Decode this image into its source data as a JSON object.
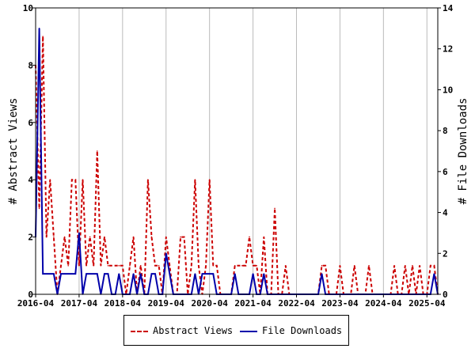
{
  "chart_data": {
    "type": "line",
    "x_tick_labels": [
      "2016-04",
      "2017-04",
      "2018-04",
      "2019-04",
      "2020-04",
      "2021-04",
      "2022-04",
      "2023-04",
      "2024-04",
      "2025-04"
    ],
    "x_range": [
      "2016-04",
      "2025-07"
    ],
    "ylabel_left": "# Abstract Views",
    "ylabel_right": "# File Downloads",
    "ylim_left": [
      0,
      10
    ],
    "ylim_right": [
      0,
      14
    ],
    "yticks_left": [
      "0",
      "2",
      "4",
      "6",
      "8",
      "10"
    ],
    "yticks_right": [
      "0",
      "2",
      "4",
      "6",
      "8",
      "10",
      "12",
      "14"
    ],
    "legend_position": "bottom",
    "series": [
      {
        "name": "Abstract Views",
        "axis": "left",
        "color": "#cc0000",
        "style": "dashed",
        "points": [
          [
            "2016-04",
            8
          ],
          [
            "2016-05",
            3
          ],
          [
            "2016-06",
            9
          ],
          [
            "2016-07",
            2
          ],
          [
            "2016-08",
            4
          ],
          [
            "2016-09",
            2
          ],
          [
            "2016-10",
            0
          ],
          [
            "2016-11",
            1
          ],
          [
            "2016-12",
            2
          ],
          [
            "2017-01",
            1
          ],
          [
            "2017-02",
            4
          ],
          [
            "2017-03",
            4
          ],
          [
            "2017-04",
            1
          ],
          [
            "2017-05",
            4
          ],
          [
            "2017-06",
            1
          ],
          [
            "2017-07",
            2
          ],
          [
            "2017-08",
            1
          ],
          [
            "2017-09",
            5
          ],
          [
            "2017-10",
            1
          ],
          [
            "2017-11",
            2
          ],
          [
            "2017-12",
            1
          ],
          [
            "2018-01",
            1
          ],
          [
            "2018-02",
            1
          ],
          [
            "2018-03",
            1
          ],
          [
            "2018-04",
            1
          ],
          [
            "2018-05",
            0
          ],
          [
            "2018-06",
            1
          ],
          [
            "2018-07",
            2
          ],
          [
            "2018-08",
            0
          ],
          [
            "2018-09",
            1
          ],
          [
            "2018-10",
            0
          ],
          [
            "2018-11",
            4
          ],
          [
            "2018-12",
            2
          ],
          [
            "2019-01",
            1
          ],
          [
            "2019-02",
            1
          ],
          [
            "2019-03",
            0
          ],
          [
            "2019-04",
            2
          ],
          [
            "2019-05",
            1
          ],
          [
            "2019-06",
            0
          ],
          [
            "2019-07",
            0
          ],
          [
            "2019-08",
            2
          ],
          [
            "2019-09",
            2
          ],
          [
            "2019-10",
            0
          ],
          [
            "2019-11",
            1
          ],
          [
            "2019-12",
            4
          ],
          [
            "2020-01",
            1
          ],
          [
            "2020-02",
            0
          ],
          [
            "2020-03",
            1
          ],
          [
            "2020-04",
            4
          ],
          [
            "2020-05",
            1
          ],
          [
            "2020-06",
            1
          ],
          [
            "2020-07",
            0
          ],
          [
            "2020-08",
            0
          ],
          [
            "2020-09",
            0
          ],
          [
            "2020-10",
            0
          ],
          [
            "2020-11",
            1
          ],
          [
            "2020-12",
            1
          ],
          [
            "2021-01",
            1
          ],
          [
            "2021-02",
            1
          ],
          [
            "2021-03",
            2
          ],
          [
            "2021-04",
            1
          ],
          [
            "2021-05",
            1
          ],
          [
            "2021-06",
            0
          ],
          [
            "2021-07",
            2
          ],
          [
            "2021-08",
            0
          ],
          [
            "2021-09",
            0
          ],
          [
            "2021-10",
            3
          ],
          [
            "2021-11",
            0
          ],
          [
            "2021-12",
            0
          ],
          [
            "2022-01",
            1
          ],
          [
            "2022-02",
            0
          ],
          [
            "2022-03",
            0
          ],
          [
            "2022-04",
            0
          ],
          [
            "2022-05",
            0
          ],
          [
            "2022-06",
            0
          ],
          [
            "2022-07",
            0
          ],
          [
            "2022-08",
            0
          ],
          [
            "2022-09",
            0
          ],
          [
            "2022-10",
            0
          ],
          [
            "2022-11",
            1
          ],
          [
            "2022-12",
            1
          ],
          [
            "2023-01",
            0
          ],
          [
            "2023-02",
            0
          ],
          [
            "2023-03",
            0
          ],
          [
            "2023-04",
            1
          ],
          [
            "2023-05",
            0
          ],
          [
            "2023-06",
            0
          ],
          [
            "2023-07",
            0
          ],
          [
            "2023-08",
            1
          ],
          [
            "2023-09",
            0
          ],
          [
            "2023-10",
            0
          ],
          [
            "2023-11",
            0
          ],
          [
            "2023-12",
            1
          ],
          [
            "2024-01",
            0
          ],
          [
            "2024-02",
            0
          ],
          [
            "2024-03",
            0
          ],
          [
            "2024-04",
            0
          ],
          [
            "2024-05",
            0
          ],
          [
            "2024-06",
            0
          ],
          [
            "2024-07",
            1
          ],
          [
            "2024-08",
            0
          ],
          [
            "2024-09",
            0
          ],
          [
            "2024-10",
            1
          ],
          [
            "2024-11",
            0
          ],
          [
            "2024-12",
            1
          ],
          [
            "2025-01",
            0
          ],
          [
            "2025-02",
            1
          ],
          [
            "2025-03",
            0
          ],
          [
            "2025-04",
            0
          ],
          [
            "2025-05",
            1
          ],
          [
            "2025-06",
            1
          ],
          [
            "2025-07",
            0
          ]
        ]
      },
      {
        "name": "File Downloads",
        "axis": "right",
        "color": "#0000aa",
        "style": "solid",
        "points": [
          [
            "2016-04",
            2.8
          ],
          [
            "2016-05",
            13
          ],
          [
            "2016-06",
            1
          ],
          [
            "2016-07",
            1
          ],
          [
            "2016-08",
            1
          ],
          [
            "2016-09",
            1
          ],
          [
            "2016-10",
            0
          ],
          [
            "2016-11",
            1
          ],
          [
            "2016-12",
            1
          ],
          [
            "2017-01",
            1
          ],
          [
            "2017-02",
            1
          ],
          [
            "2017-03",
            1
          ],
          [
            "2017-04",
            3
          ],
          [
            "2017-05",
            0
          ],
          [
            "2017-06",
            1
          ],
          [
            "2017-07",
            1
          ],
          [
            "2017-08",
            1
          ],
          [
            "2017-09",
            1
          ],
          [
            "2017-10",
            0
          ],
          [
            "2017-11",
            1
          ],
          [
            "2017-12",
            1
          ],
          [
            "2018-01",
            0
          ],
          [
            "2018-02",
            0
          ],
          [
            "2018-03",
            1
          ],
          [
            "2018-04",
            0
          ],
          [
            "2018-05",
            0
          ],
          [
            "2018-06",
            0
          ],
          [
            "2018-07",
            1
          ],
          [
            "2018-08",
            0
          ],
          [
            "2018-09",
            1
          ],
          [
            "2018-10",
            0
          ],
          [
            "2018-11",
            0
          ],
          [
            "2018-12",
            1
          ],
          [
            "2019-01",
            1
          ],
          [
            "2019-02",
            0
          ],
          [
            "2019-03",
            0
          ],
          [
            "2019-04",
            2
          ],
          [
            "2019-05",
            1
          ],
          [
            "2019-06",
            0
          ],
          [
            "2019-07",
            0
          ],
          [
            "2019-08",
            0
          ],
          [
            "2019-09",
            0
          ],
          [
            "2019-10",
            0
          ],
          [
            "2019-11",
            0
          ],
          [
            "2019-12",
            1
          ],
          [
            "2020-01",
            0
          ],
          [
            "2020-02",
            1
          ],
          [
            "2020-03",
            1
          ],
          [
            "2020-04",
            1
          ],
          [
            "2020-05",
            1
          ],
          [
            "2020-06",
            0
          ],
          [
            "2020-07",
            0
          ],
          [
            "2020-08",
            0
          ],
          [
            "2020-09",
            0
          ],
          [
            "2020-10",
            0
          ],
          [
            "2020-11",
            1
          ],
          [
            "2020-12",
            0
          ],
          [
            "2021-01",
            0
          ],
          [
            "2021-02",
            0
          ],
          [
            "2021-03",
            0
          ],
          [
            "2021-04",
            1
          ],
          [
            "2021-05",
            0
          ],
          [
            "2021-06",
            0
          ],
          [
            "2021-07",
            1
          ],
          [
            "2021-08",
            0
          ],
          [
            "2021-09",
            0
          ],
          [
            "2021-10",
            0
          ],
          [
            "2021-11",
            0
          ],
          [
            "2021-12",
            0
          ],
          [
            "2022-01",
            0
          ],
          [
            "2022-02",
            0
          ],
          [
            "2022-03",
            0
          ],
          [
            "2022-04",
            0
          ],
          [
            "2022-05",
            0
          ],
          [
            "2022-06",
            0
          ],
          [
            "2022-07",
            0
          ],
          [
            "2022-08",
            0
          ],
          [
            "2022-09",
            0
          ],
          [
            "2022-10",
            0
          ],
          [
            "2022-11",
            1
          ],
          [
            "2022-12",
            0
          ],
          [
            "2023-01",
            0
          ],
          [
            "2023-02",
            0
          ],
          [
            "2023-03",
            0
          ],
          [
            "2023-04",
            0
          ],
          [
            "2023-05",
            0
          ],
          [
            "2023-06",
            0
          ],
          [
            "2023-07",
            0
          ],
          [
            "2023-08",
            0
          ],
          [
            "2023-09",
            0
          ],
          [
            "2023-10",
            0
          ],
          [
            "2023-11",
            0
          ],
          [
            "2023-12",
            0
          ],
          [
            "2024-01",
            0
          ],
          [
            "2024-02",
            0
          ],
          [
            "2024-03",
            0
          ],
          [
            "2024-04",
            0
          ],
          [
            "2024-05",
            0
          ],
          [
            "2024-06",
            0
          ],
          [
            "2024-07",
            0
          ],
          [
            "2024-08",
            0
          ],
          [
            "2024-09",
            0
          ],
          [
            "2024-10",
            0
          ],
          [
            "2024-11",
            0
          ],
          [
            "2024-12",
            0
          ],
          [
            "2025-01",
            0
          ],
          [
            "2025-02",
            0
          ],
          [
            "2025-03",
            0
          ],
          [
            "2025-04",
            0
          ],
          [
            "2025-05",
            0
          ],
          [
            "2025-06",
            1
          ],
          [
            "2025-07",
            0
          ]
        ]
      }
    ]
  }
}
